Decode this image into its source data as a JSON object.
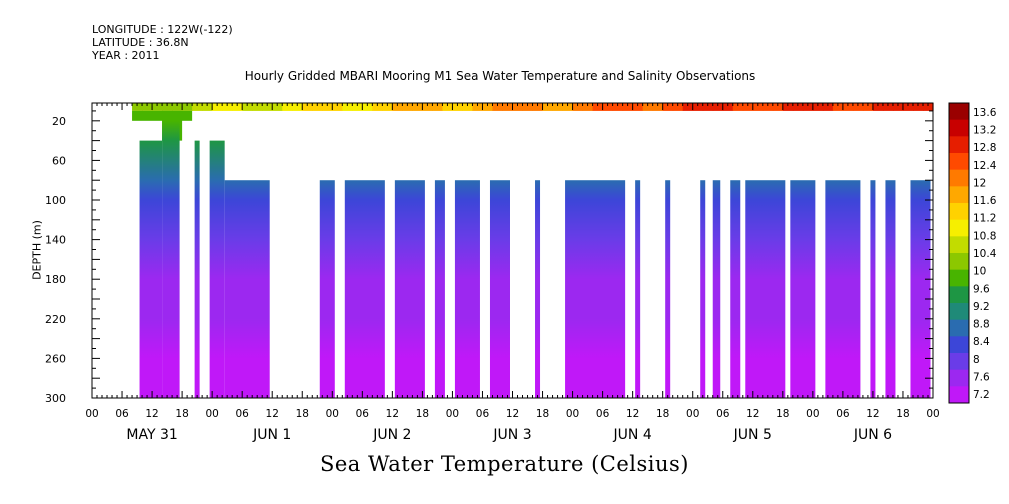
{
  "header": {
    "longitude": "LONGITUDE : 122W(-122)",
    "latitude": "LATITUDE : 36.8N",
    "year": "YEAR : 2011"
  },
  "chart_data": {
    "type": "heatmap",
    "title": "Hourly Gridded MBARI Mooring M1 Sea Water Temperature and Salinity Observations",
    "xlabel": "Sea Water Temperature (Celsius)",
    "ylabel": "DEPTH (m)",
    "x_unit": "hours since 2011-05-31 00:00",
    "xlim": [
      0,
      168
    ],
    "ylim": [
      300,
      2
    ],
    "yticks": [
      20,
      60,
      100,
      140,
      180,
      220,
      260,
      300
    ],
    "x_hour_ticks": [
      "00",
      "06",
      "12",
      "18",
      "00",
      "06",
      "12",
      "18",
      "00",
      "06",
      "12",
      "18",
      "00",
      "06",
      "12",
      "18",
      "00",
      "06",
      "12",
      "18",
      "00",
      "06",
      "12",
      "18",
      "00",
      "06",
      "12",
      "18",
      "00"
    ],
    "x_day_labels": [
      {
        "hour": 12,
        "label": "MAY 31"
      },
      {
        "hour": 36,
        "label": "JUN  1"
      },
      {
        "hour": 60,
        "label": "JUN  2"
      },
      {
        "hour": 84,
        "label": "JUN  3"
      },
      {
        "hour": 108,
        "label": "JUN  4"
      },
      {
        "hour": 132,
        "label": "JUN  5"
      },
      {
        "hour": 156,
        "label": "JUN  6"
      }
    ],
    "colorbar": {
      "min": 7.2,
      "max": 13.6,
      "step": 0.4,
      "labels": [
        "13.6",
        "13.2",
        "12.8",
        "12.4",
        "12",
        "11.6",
        "11.2",
        "10.8",
        "10.4",
        "10",
        "9.6",
        "9.2",
        "8.8",
        "8.4",
        "8",
        "7.6",
        "7.2"
      ],
      "colors": [
        "#9a0000",
        "#c80000",
        "#e61e00",
        "#ff4a00",
        "#ff7a00",
        "#ffa800",
        "#ffd200",
        "#f6ef00",
        "#c2dc00",
        "#8cc800",
        "#48b400",
        "#1e9644",
        "#1f8a78",
        "#2a6cb0",
        "#3c46d8",
        "#6a3ce8",
        "#9c28f0",
        "#c018f8"
      ]
    },
    "surface_layer": {
      "depth_top": 2,
      "depth_bottom": 10,
      "start_hour": 8,
      "end_hour": 168
    },
    "near_surface_segments": [
      {
        "start_hour": 8,
        "end_hour": 20,
        "depth_bottom": 20
      },
      {
        "start_hour": 14,
        "end_hour": 18,
        "depth_bottom": 40
      }
    ],
    "profile_segments": [
      {
        "start_hour": 9.5,
        "end_hour": 14,
        "top_depth": 40
      },
      {
        "start_hour": 14,
        "end_hour": 17.5,
        "top_depth": 20
      },
      {
        "start_hour": 20.5,
        "end_hour": 21.5,
        "top_depth": 40
      },
      {
        "start_hour": 23.5,
        "end_hour": 26.5,
        "top_depth": 40
      },
      {
        "start_hour": 26.5,
        "end_hour": 35.5,
        "top_depth": 80
      },
      {
        "start_hour": 45.5,
        "end_hour": 48.5,
        "top_depth": 80
      },
      {
        "start_hour": 50.5,
        "end_hour": 58.5,
        "top_depth": 80
      },
      {
        "start_hour": 60.5,
        "end_hour": 66.5,
        "top_depth": 80
      },
      {
        "start_hour": 68.5,
        "end_hour": 70.5,
        "top_depth": 80
      },
      {
        "start_hour": 72.5,
        "end_hour": 77.5,
        "top_depth": 80
      },
      {
        "start_hour": 79.5,
        "end_hour": 83.5,
        "top_depth": 80
      },
      {
        "start_hour": 88.5,
        "end_hour": 89.5,
        "top_depth": 80
      },
      {
        "start_hour": 94.5,
        "end_hour": 106.5,
        "top_depth": 80
      },
      {
        "start_hour": 108.5,
        "end_hour": 109.5,
        "top_depth": 80
      },
      {
        "start_hour": 114.5,
        "end_hour": 115.5,
        "top_depth": 80
      },
      {
        "start_hour": 121.5,
        "end_hour": 122.5,
        "top_depth": 80
      },
      {
        "start_hour": 124,
        "end_hour": 125.5,
        "top_depth": 80
      },
      {
        "start_hour": 127.5,
        "end_hour": 129.5,
        "top_depth": 80
      },
      {
        "start_hour": 130.5,
        "end_hour": 138.5,
        "top_depth": 80
      },
      {
        "start_hour": 139.5,
        "end_hour": 144.5,
        "top_depth": 80
      },
      {
        "start_hour": 146.5,
        "end_hour": 153.5,
        "top_depth": 80
      },
      {
        "start_hour": 155.5,
        "end_hour": 156.5,
        "top_depth": 80
      },
      {
        "start_hour": 158.5,
        "end_hour": 160.5,
        "top_depth": 80
      },
      {
        "start_hour": 163.5,
        "end_hour": 167.5,
        "top_depth": 80
      }
    ],
    "temperature_profile": [
      {
        "depth": 20,
        "temp": 10.0
      },
      {
        "depth": 40,
        "temp": 9.4
      },
      {
        "depth": 80,
        "temp": 8.8
      },
      {
        "depth": 100,
        "temp": 8.6
      },
      {
        "depth": 140,
        "temp": 8.2
      },
      {
        "depth": 180,
        "temp": 7.9
      },
      {
        "depth": 220,
        "temp": 7.7
      },
      {
        "depth": 260,
        "temp": 7.5
      },
      {
        "depth": 300,
        "temp": 7.3
      }
    ],
    "surface_temp_by_hour": [
      {
        "hour": 8,
        "temp": 10.1
      },
      {
        "hour": 30,
        "temp": 10.8
      },
      {
        "hour": 50,
        "temp": 11.2
      },
      {
        "hour": 80,
        "temp": 11.8
      },
      {
        "hour": 100,
        "temp": 12.1
      },
      {
        "hour": 120,
        "temp": 12.5
      },
      {
        "hour": 168,
        "temp": 12.6
      }
    ]
  }
}
